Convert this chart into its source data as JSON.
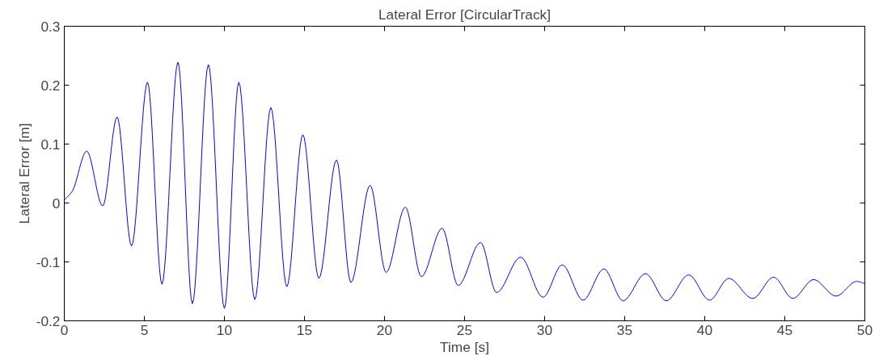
{
  "chart_data": {
    "type": "line",
    "title": "Lateral Error [CircularTrack]",
    "xlabel": "Time [s]",
    "ylabel": "Lateral Error [m]",
    "x": [
      0,
      0.5,
      1.4,
      2.4,
      3.3,
      4.2,
      5.2,
      6.1,
      7.1,
      8.0,
      9.0,
      10.0,
      10.9,
      11.9,
      12.9,
      13.9,
      14.9,
      15.9,
      17.0,
      17.9,
      19.1,
      20.1,
      21.3,
      22.3,
      23.6,
      24.6,
      26.0,
      27.0,
      28.5,
      29.9,
      31.1,
      32.4,
      33.7,
      34.9,
      36.3,
      37.6,
      39.0,
      40.3,
      41.5,
      43.0,
      44.3,
      45.5,
      46.8,
      48.2,
      49.5,
      50
    ],
    "series": [
      {
        "color": "#0000ff",
        "values": [
          0.005,
          0.02,
          0.088,
          -0.005,
          0.146,
          -0.073,
          0.205,
          -0.138,
          0.239,
          -0.171,
          0.235,
          -0.179,
          0.205,
          -0.164,
          0.162,
          -0.142,
          0.116,
          -0.128,
          0.073,
          -0.135,
          0.03,
          -0.118,
          -0.007,
          -0.125,
          -0.043,
          -0.14,
          -0.067,
          -0.152,
          -0.092,
          -0.16,
          -0.105,
          -0.165,
          -0.112,
          -0.166,
          -0.12,
          -0.166,
          -0.122,
          -0.165,
          -0.128,
          -0.162,
          -0.126,
          -0.162,
          -0.13,
          -0.158,
          -0.133,
          -0.137
        ]
      }
    ],
    "xlim": [
      0,
      50
    ],
    "xticks": [
      0,
      5,
      10,
      15,
      20,
      25,
      30,
      35,
      40,
      45,
      50
    ],
    "ylim": [
      -0.2,
      0.3
    ],
    "yticks": [
      -0.2,
      -0.1,
      0,
      0.1,
      0.2,
      0.3
    ],
    "grid": false,
    "marker": "none",
    "line_style": "solid"
  }
}
